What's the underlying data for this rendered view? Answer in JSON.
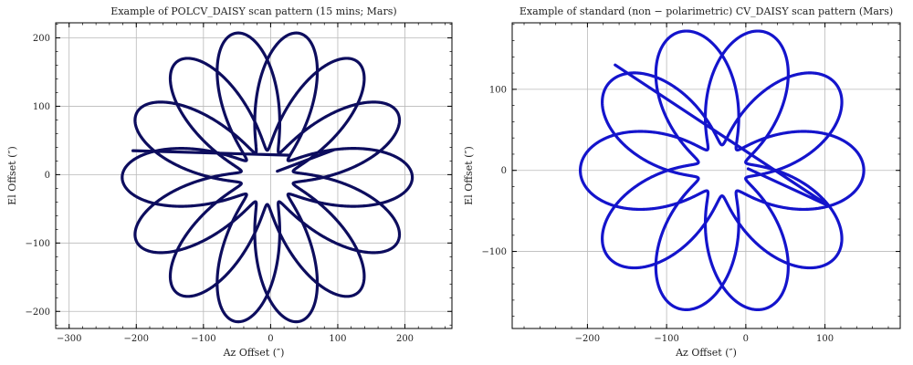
{
  "chart_data": [
    {
      "type": "line",
      "title": "Example of POLCV_DAISY scan pattern (15 mins; Mars)",
      "xlabel": "Az Offset (″)",
      "ylabel": "El Offset (″)",
      "xlim": [
        -320,
        270
      ],
      "ylim": [
        -225,
        222
      ],
      "xticks": [
        -300,
        -200,
        -100,
        0,
        100,
        200
      ],
      "yticks": [
        -200,
        -100,
        0,
        100,
        200
      ],
      "grid": true,
      "series": [
        {
          "color": "#0d0d5e",
          "daisy": {
            "R": 113,
            "r": 103,
            "inner_radius": 20,
            "petals": 7,
            "rotation_deg": 22,
            "center": [
              -5,
              -4
            ],
            "turns": 1.02
          },
          "start": [
            10,
            5
          ],
          "end": [
            -205,
            35
          ]
        }
      ]
    },
    {
      "type": "line",
      "title": "Example of standard (non − polarimetric) CV_DAISY scan pattern (Mars)",
      "xlabel": "Az Offset (″)",
      "ylabel": "El Offset (″)",
      "xlim": [
        -295,
        195
      ],
      "ylim": [
        -195,
        182
      ],
      "xticks": [
        -200,
        -100,
        0,
        100
      ],
      "yticks": [
        -100,
        0,
        100
      ],
      "grid": true,
      "series": [
        {
          "color": "#1414cc",
          "daisy": {
            "R": 88,
            "r": 91,
            "inner_radius": 15,
            "petals": 5,
            "rotation_deg": -18,
            "center": [
              -30,
              0
            ],
            "turns": 1.0
          },
          "start": [
            3,
            2
          ],
          "end": [
            -165,
            130
          ]
        }
      ]
    }
  ]
}
